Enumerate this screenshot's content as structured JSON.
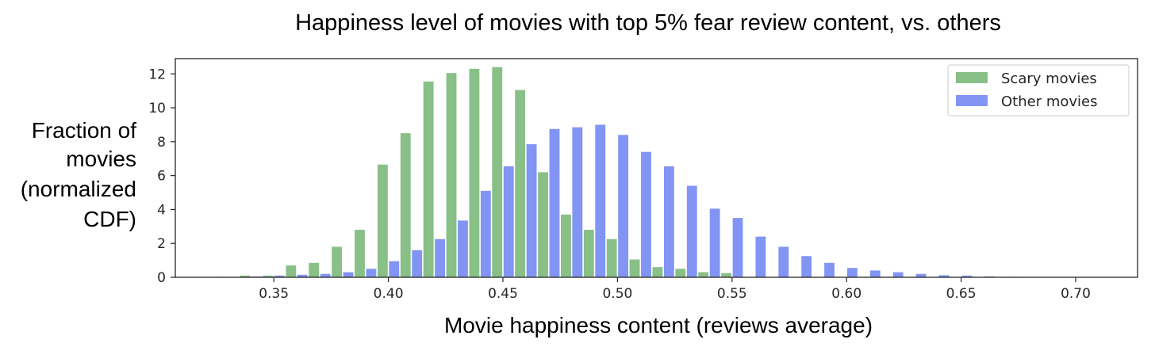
{
  "chart_data": {
    "type": "bar",
    "title": "Happiness level of movies with top 5% fear review content, vs. others",
    "xlabel": "Movie happiness content (reviews average)",
    "ylabel": [
      "Fraction of",
      "movies",
      "(normalized",
      "CDF)"
    ],
    "xlim": [
      0.307,
      0.727
    ],
    "ylim": [
      0,
      12.9
    ],
    "xticks": [
      {
        "value": 0.35,
        "label": "0.35"
      },
      {
        "value": 0.4,
        "label": "0.40"
      },
      {
        "value": 0.45,
        "label": "0.45"
      },
      {
        "value": 0.5,
        "label": "0.50"
      },
      {
        "value": 0.55,
        "label": "0.55"
      },
      {
        "value": 0.6,
        "label": "0.60"
      },
      {
        "value": 0.65,
        "label": "0.65"
      },
      {
        "value": 0.7,
        "label": "0.70"
      }
    ],
    "yticks": [
      {
        "value": 0,
        "label": "0"
      },
      {
        "value": 2,
        "label": "2"
      },
      {
        "value": 4,
        "label": "4"
      },
      {
        "value": 6,
        "label": "6"
      },
      {
        "value": 8,
        "label": "8"
      },
      {
        "value": 10,
        "label": "10"
      },
      {
        "value": 12,
        "label": "12"
      }
    ],
    "bin_width": 0.01,
    "legend_position": "top-right",
    "grid": false,
    "series": [
      {
        "name": "Scary movies",
        "color": "#73b573",
        "offset": "left",
        "x": [
          0.32,
          0.33,
          0.34,
          0.35,
          0.36,
          0.37,
          0.38,
          0.39,
          0.4,
          0.41,
          0.42,
          0.43,
          0.44,
          0.45,
          0.46,
          0.47,
          0.48,
          0.49,
          0.5,
          0.51,
          0.52,
          0.53,
          0.54,
          0.55,
          0.56
        ],
        "values": [
          0.02,
          0.03,
          0.1,
          0.1,
          0.7,
          0.85,
          1.8,
          2.8,
          6.65,
          8.5,
          11.55,
          12.05,
          12.3,
          12.4,
          11.05,
          6.2,
          3.7,
          2.8,
          2.25,
          1.05,
          0.6,
          0.5,
          0.3,
          0.25,
          0.02
        ]
      },
      {
        "name": "Other movies",
        "color": "#6c82f2",
        "offset": "right",
        "x": [
          0.32,
          0.33,
          0.34,
          0.35,
          0.36,
          0.37,
          0.38,
          0.39,
          0.4,
          0.41,
          0.42,
          0.43,
          0.44,
          0.45,
          0.46,
          0.47,
          0.48,
          0.49,
          0.5,
          0.51,
          0.52,
          0.53,
          0.54,
          0.55,
          0.56,
          0.57,
          0.58,
          0.59,
          0.6,
          0.61,
          0.62,
          0.63,
          0.64,
          0.65,
          0.66,
          0.67,
          0.68,
          0.69,
          0.7,
          0.71
        ],
        "values": [
          0.01,
          0.02,
          0.05,
          0.1,
          0.15,
          0.2,
          0.3,
          0.5,
          0.95,
          1.6,
          2.25,
          3.35,
          5.1,
          6.55,
          7.85,
          8.75,
          8.85,
          9.0,
          8.4,
          7.4,
          6.55,
          5.4,
          4.05,
          3.5,
          2.4,
          1.8,
          1.25,
          0.85,
          0.55,
          0.4,
          0.3,
          0.2,
          0.12,
          0.1,
          0.05,
          0.03,
          0.02,
          0.01,
          0.01,
          0.01
        ]
      }
    ]
  }
}
